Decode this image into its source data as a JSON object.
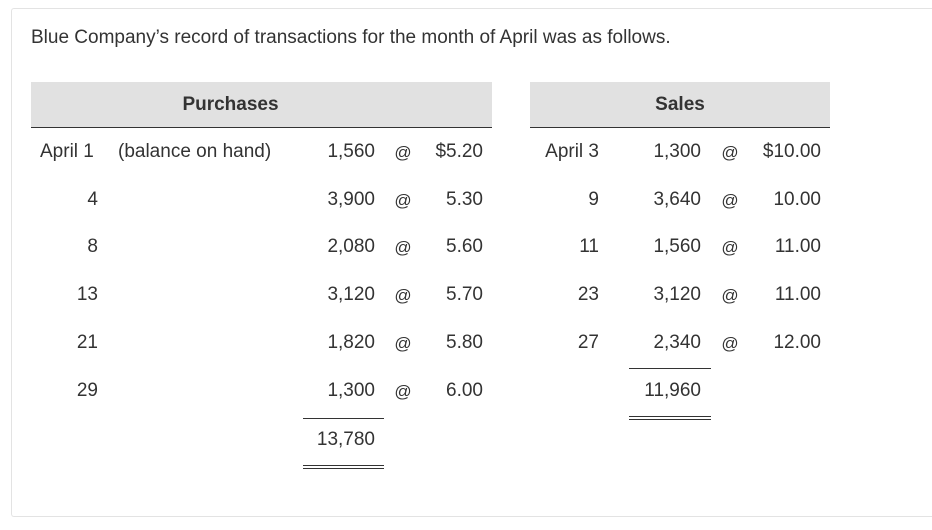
{
  "intro": "Blue Company’s record of transactions for the month of April was as follows.",
  "headers": {
    "purchases": "Purchases",
    "sales": "Sales"
  },
  "at_symbol": "@",
  "purchases": [
    {
      "date": "April 1",
      "note": "(balance on hand)",
      "qty": "1,560",
      "price": "$5.20"
    },
    {
      "date": "4",
      "note": "",
      "qty": "3,900",
      "price": "5.30"
    },
    {
      "date": "8",
      "note": "",
      "qty": "2,080",
      "price": "5.60"
    },
    {
      "date": "13",
      "note": "",
      "qty": "3,120",
      "price": "5.70"
    },
    {
      "date": "21",
      "note": "",
      "qty": "1,820",
      "price": "5.80"
    },
    {
      "date": "29",
      "note": "",
      "qty": "1,300",
      "price": "6.00"
    }
  ],
  "purchases_total": "13,780",
  "sales": [
    {
      "date": "April 3",
      "qty": "1,300",
      "price": "$10.00"
    },
    {
      "date": "9",
      "qty": "3,640",
      "price": "10.00"
    },
    {
      "date": "11",
      "qty": "1,560",
      "price": "11.00"
    },
    {
      "date": "23",
      "qty": "3,120",
      "price": "11.00"
    },
    {
      "date": "27",
      "qty": "2,340",
      "price": "12.00"
    }
  ],
  "sales_total": "11,960"
}
